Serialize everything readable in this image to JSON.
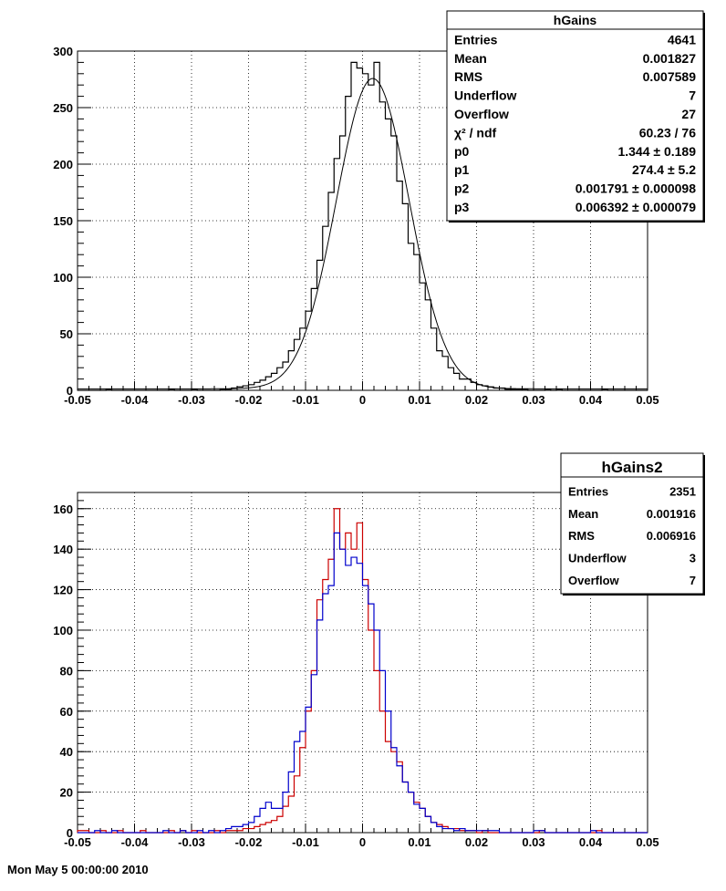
{
  "chart_data": [
    {
      "type": "histogram",
      "title": "",
      "xlabel": "",
      "ylabel": "",
      "xlim": [
        -0.05,
        0.05
      ],
      "ylim": [
        0,
        300
      ],
      "grid": true,
      "x_ticks": [
        "-0.05",
        "-0.04",
        "-0.03",
        "-0.02",
        "-0.01",
        "0",
        "0.01",
        "0.02",
        "0.03",
        "0.04",
        "0.05"
      ],
      "y_ticks": [
        "0",
        "50",
        "100",
        "150",
        "200",
        "250",
        "300"
      ],
      "bin_width": 0.001,
      "series": [
        {
          "name": "",
          "color": "#000000",
          "x_start": -0.05,
          "values": [
            0,
            0,
            0,
            0,
            0,
            1,
            0,
            0,
            0,
            0,
            0,
            0,
            0,
            0,
            0,
            0,
            1,
            0,
            0,
            0,
            1,
            0,
            0,
            0,
            0,
            1,
            1,
            2,
            3,
            4,
            5,
            7,
            9,
            12,
            15,
            20,
            25,
            35,
            45,
            55,
            70,
            90,
            115,
            145,
            175,
            205,
            225,
            260,
            290,
            285,
            280,
            270,
            290,
            255,
            240,
            225,
            185,
            165,
            130,
            120,
            95,
            80,
            55,
            35,
            30,
            20,
            15,
            10,
            10,
            7,
            5,
            4,
            3,
            2,
            2,
            1,
            1,
            1,
            1,
            0,
            0,
            0,
            1,
            0,
            1,
            0,
            0,
            0,
            0,
            0,
            0,
            0,
            1,
            0,
            0,
            0,
            0,
            0,
            0,
            0
          ]
        },
        {
          "name": "fit",
          "color": "#000000",
          "fit_params": {
            "p0": 1.344,
            "p1": 274.4,
            "p2": 0.001791,
            "p3": 0.006392
          }
        }
      ],
      "stats_box": {
        "title": "hGains",
        "rows": [
          {
            "label": "Entries",
            "value": "4641"
          },
          {
            "label": "Mean",
            "value": "0.001827"
          },
          {
            "label": "RMS",
            "value": "0.007589"
          },
          {
            "label": "Underflow",
            "value": "7"
          },
          {
            "label": "Overflow",
            "value": "27"
          },
          {
            "label": "χ² / ndf",
            "value": "60.23 / 76"
          },
          {
            "label": "p0",
            "value": "1.344 ± 0.189"
          },
          {
            "label": "p1",
            "value": "274.4 ± 5.2"
          },
          {
            "label": "p2",
            "value": "0.001791 ± 0.000098"
          },
          {
            "label": "p3",
            "value": "0.006392 ± 0.000079"
          }
        ]
      }
    },
    {
      "type": "histogram",
      "title": "",
      "xlabel": "",
      "ylabel": "",
      "xlim": [
        -0.05,
        0.05
      ],
      "ylim": [
        0,
        168
      ],
      "grid": true,
      "x_ticks": [
        "-0.05",
        "-0.04",
        "-0.03",
        "-0.02",
        "-0.01",
        "0",
        "0.01",
        "0.02",
        "0.03",
        "0.04",
        "0.05"
      ],
      "y_ticks": [
        "0",
        "20",
        "40",
        "60",
        "80",
        "100",
        "120",
        "140",
        "160"
      ],
      "bin_width": 0.001,
      "series": [
        {
          "name": "",
          "color": "#cc0000",
          "x_start": -0.05,
          "values": [
            1,
            1,
            0,
            0,
            1,
            0,
            0,
            1,
            0,
            0,
            0,
            1,
            0,
            0,
            0,
            0,
            1,
            0,
            1,
            0,
            1,
            0,
            0,
            0,
            1,
            0,
            1,
            1,
            1,
            2,
            2,
            3,
            4,
            5,
            6,
            8,
            13,
            18,
            28,
            42,
            60,
            80,
            115,
            125,
            135,
            160,
            140,
            148,
            140,
            153,
            125,
            100,
            80,
            60,
            45,
            40,
            35,
            25,
            20,
            15,
            12,
            8,
            5,
            4,
            3,
            2,
            2,
            1,
            1,
            1,
            0,
            1,
            0,
            0,
            0,
            0,
            0,
            0,
            0,
            0,
            0,
            1,
            0,
            0,
            0,
            0,
            0,
            0,
            0,
            0,
            0,
            1,
            0,
            0,
            0,
            0,
            0,
            0,
            0,
            0
          ]
        },
        {
          "name": "",
          "color": "#0000cc",
          "x_start": -0.05,
          "values": [
            0,
            0,
            0,
            1,
            0,
            0,
            1,
            0,
            0,
            0,
            0,
            0,
            0,
            0,
            0,
            1,
            0,
            0,
            1,
            0,
            0,
            1,
            0,
            1,
            0,
            1,
            2,
            3,
            3,
            4,
            5,
            8,
            12,
            15,
            12,
            12,
            20,
            30,
            45,
            50,
            62,
            78,
            105,
            118,
            122,
            148,
            140,
            132,
            136,
            133,
            122,
            113,
            100,
            80,
            60,
            42,
            33,
            25,
            20,
            14,
            12,
            8,
            5,
            3,
            2,
            2,
            1,
            2,
            1,
            1,
            1,
            1,
            1,
            1,
            0,
            0,
            0,
            0,
            0,
            0,
            1,
            1,
            0,
            0,
            0,
            0,
            0,
            0,
            0,
            0,
            1,
            0,
            0,
            0,
            0,
            0,
            0,
            0,
            0,
            0
          ]
        }
      ],
      "stats_box": {
        "title": "hGains2",
        "rows": [
          {
            "label": "Entries",
            "value": "2351"
          },
          {
            "label": "Mean",
            "value": "0.001916"
          },
          {
            "label": "RMS",
            "value": "0.006916"
          },
          {
            "label": "Underflow",
            "value": "3"
          },
          {
            "label": "Overflow",
            "value": "7"
          }
        ]
      }
    }
  ],
  "footer": "Mon May  5 00:00:00 2010"
}
